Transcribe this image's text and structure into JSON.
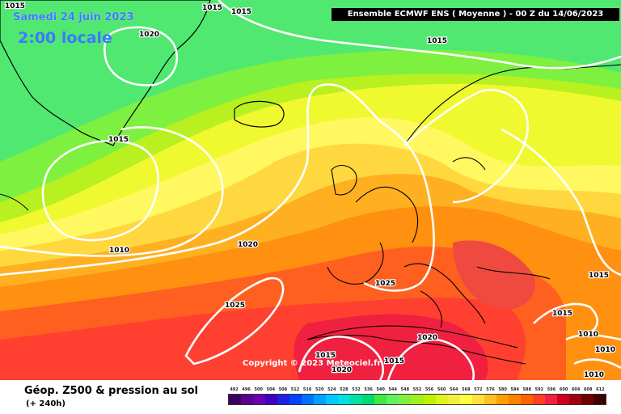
{
  "header": {
    "date": "Samedi 24 juin 2023",
    "local_time": "2:00 locale",
    "banner": "Ensemble ECMWF ENS  ( Moyenne )  -  00 Z du 14/06/2023"
  },
  "footer": {
    "product": "Géop. Z500 & pression au sol",
    "lead_time": "(+ 240h)",
    "copyright": "Copyright © 2023 Meteociel.fr"
  },
  "color_scale": {
    "labels": [
      "492",
      "496",
      "500",
      "504",
      "508",
      "512",
      "516",
      "520",
      "524",
      "528",
      "532",
      "536",
      "540",
      "544",
      "548",
      "552",
      "556",
      "560",
      "564",
      "568",
      "572",
      "576",
      "580",
      "584",
      "588",
      "592",
      "596",
      "600",
      "604",
      "608",
      "612"
    ],
    "colors": [
      "#3a0060",
      "#5a0090",
      "#6a00b0",
      "#4000c0",
      "#2020e0",
      "#0040ff",
      "#0070ff",
      "#00a0ff",
      "#00c8ff",
      "#00e0e0",
      "#00e0a0",
      "#00d870",
      "#40e840",
      "#60f060",
      "#80f040",
      "#a0f020",
      "#c0f000",
      "#e0f020",
      "#f0f040",
      "#ffff40",
      "#ffe040",
      "#ffc020",
      "#ffa000",
      "#ff8000",
      "#ff6000",
      "#ff4020",
      "#f02040",
      "#d00020",
      "#a00010",
      "#700000",
      "#400000"
    ]
  },
  "isobar_labels": [
    {
      "text": "1015"
    },
    {
      "text": "1015"
    },
    {
      "text": "1015"
    },
    {
      "text": "1020"
    },
    {
      "text": "1015"
    },
    {
      "text": "1015"
    },
    {
      "text": "1010"
    },
    {
      "text": "1020"
    },
    {
      "text": "1025"
    },
    {
      "text": "1025"
    },
    {
      "text": "1020"
    },
    {
      "text": "1015"
    },
    {
      "text": "1015"
    },
    {
      "text": "1015"
    },
    {
      "text": "1020"
    },
    {
      "text": "1015"
    },
    {
      "text": "1010"
    },
    {
      "text": "1010"
    },
    {
      "text": "1010"
    }
  ]
}
